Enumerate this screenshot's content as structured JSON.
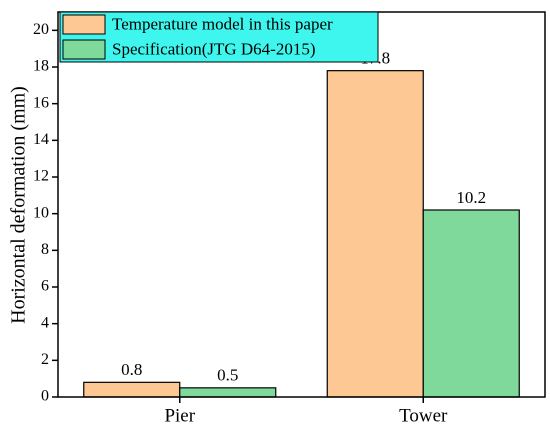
{
  "chart_data": {
    "type": "bar",
    "y_label": "Horizontal deformation (mm)",
    "categories": [
      "Pier",
      "Tower"
    ],
    "series": [
      {
        "name": "Temperature model in this paper",
        "color": "#fdc894",
        "values": [
          0.8,
          17.8
        ]
      },
      {
        "name": "Specification(JTG D64-2015)",
        "color": "#7fd99a",
        "values": [
          0.5,
          10.2
        ]
      }
    ],
    "ylim": [
      0,
      21
    ],
    "yticks": [
      0,
      2,
      4,
      6,
      8,
      10,
      12,
      14,
      16,
      18,
      20
    ],
    "legend": "upper left",
    "legend_color": "#3ff6ee"
  }
}
